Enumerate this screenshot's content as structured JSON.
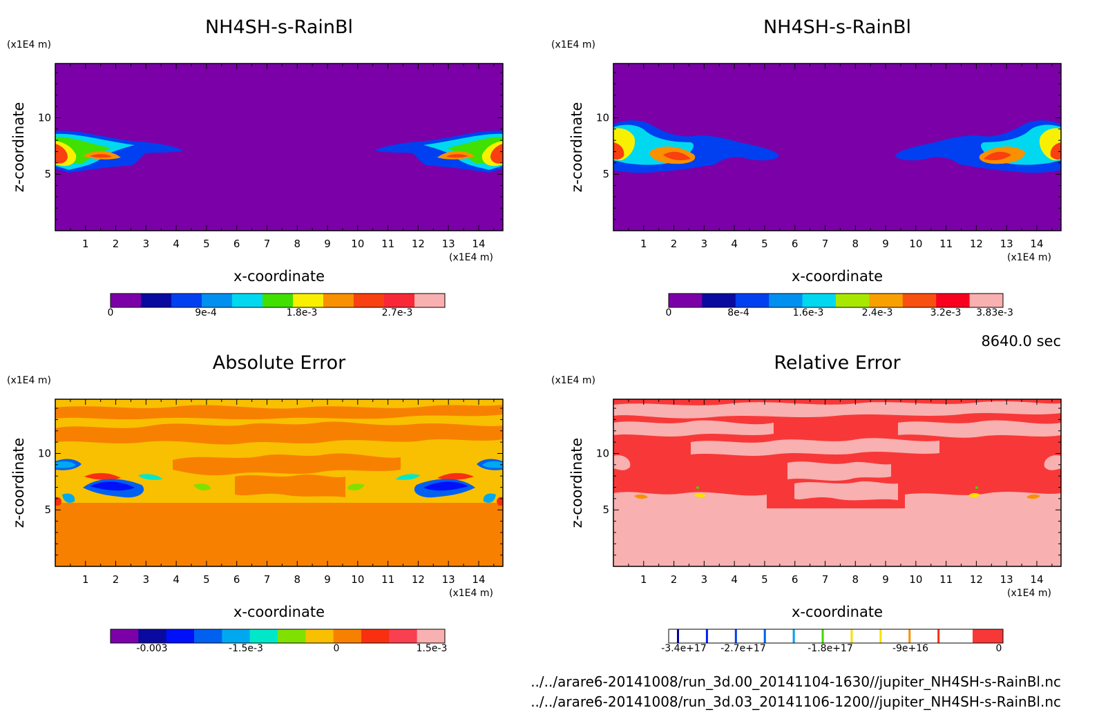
{
  "time_stamp": "8640.0 sec",
  "file_paths": [
    "../../arare6-20141008/run_3d.00_20141104-1630//jupiter_NH4SH-s-RainBl.nc",
    "../../arare6-20141008/run_3d.03_20141106-1200//jupiter_NH4SH-s-RainBl.nc"
  ],
  "chart_data": [
    {
      "type": "heatmap",
      "title": "NH4SH-s-RainBl",
      "xlabel": "x-coordinate",
      "ylabel": "z-coordinate",
      "x_unit": "(x1E4 m)",
      "y_unit": "(x1E4 m)",
      "x_ticks": [
        "1",
        "2",
        "3",
        "4",
        "5",
        "6",
        "7",
        "8",
        "9",
        "10",
        "11",
        "12",
        "13",
        "14"
      ],
      "y_ticks": [
        "5",
        "10"
      ],
      "xlim": [
        0,
        14.8
      ],
      "ylim": [
        0,
        14.8
      ],
      "colorbar": {
        "colors": [
          "#7b00a8",
          "#0a0aa0",
          "#0040f0",
          "#0090f0",
          "#00d8f0",
          "#40e000",
          "#f8f000",
          "#f89000",
          "#f84010",
          "#f82838",
          "#f8b0b0"
        ],
        "tick_labels": [
          "0",
          "9e-4",
          "1.8e-3",
          "2.7e-3"
        ]
      }
    },
    {
      "type": "heatmap",
      "title": "NH4SH-s-RainBl",
      "xlabel": "x-coordinate",
      "ylabel": "z-coordinate",
      "x_unit": "(x1E4 m)",
      "y_unit": "(x1E4 m)",
      "x_ticks": [
        "1",
        "2",
        "3",
        "4",
        "5",
        "6",
        "7",
        "8",
        "9",
        "10",
        "11",
        "12",
        "13",
        "14"
      ],
      "y_ticks": [
        "5",
        "10"
      ],
      "xlim": [
        0,
        14.8
      ],
      "ylim": [
        0,
        14.8
      ],
      "colorbar": {
        "colors": [
          "#7b00a8",
          "#0a0aa0",
          "#0040f0",
          "#0090f0",
          "#00d8f0",
          "#a8e800",
          "#f8a000",
          "#f85010",
          "#f80020",
          "#f8b0b0"
        ],
        "tick_labels": [
          "0",
          "8e-4",
          "1.6e-3",
          "2.4e-3",
          "3.2e-3",
          "3.83e-3"
        ]
      }
    },
    {
      "type": "heatmap",
      "title": "Absolute Error",
      "xlabel": "x-coordinate",
      "ylabel": "z-coordinate",
      "x_unit": "(x1E4 m)",
      "y_unit": "(x1E4 m)",
      "x_ticks": [
        "1",
        "2",
        "3",
        "4",
        "5",
        "6",
        "7",
        "8",
        "9",
        "10",
        "11",
        "12",
        "13",
        "14"
      ],
      "y_ticks": [
        "5",
        "10"
      ],
      "xlim": [
        0,
        14.8
      ],
      "ylim": [
        0,
        14.8
      ],
      "colorbar": {
        "colors": [
          "#7b00a8",
          "#0a0aa0",
          "#0010f8",
          "#0060f0",
          "#00a8f0",
          "#00e8c8",
          "#80e000",
          "#f8c000",
          "#f88000",
          "#f83010",
          "#f84050",
          "#f8b0b0"
        ],
        "tick_labels": [
          "-0.003",
          "-1.5e-3",
          "0",
          "1.5e-3"
        ]
      }
    },
    {
      "type": "heatmap",
      "title": "Relative Error",
      "xlabel": "x-coordinate",
      "ylabel": "z-coordinate",
      "x_unit": "(x1E4 m)",
      "y_unit": "(x1E4 m)",
      "x_ticks": [
        "1",
        "2",
        "3",
        "4",
        "5",
        "6",
        "7",
        "8",
        "9",
        "10",
        "11",
        "12",
        "13",
        "14"
      ],
      "y_ticks": [
        "5",
        "10"
      ],
      "xlim": [
        0,
        14.8
      ],
      "ylim": [
        0,
        14.8
      ],
      "colorbar": {
        "colors": [
          "#0000a0",
          "#0020f0",
          "#0040f0",
          "#0060f0",
          "#00a0f0",
          "#40d800",
          "#f8e000",
          "#f8e000",
          "#f89000",
          "#f83010"
        ],
        "fill_right": "#f83838",
        "tick_labels": [
          "-3.4e+17",
          "-2.7e+17",
          "-1.8e+17",
          "-9e+16",
          "0"
        ]
      }
    }
  ]
}
